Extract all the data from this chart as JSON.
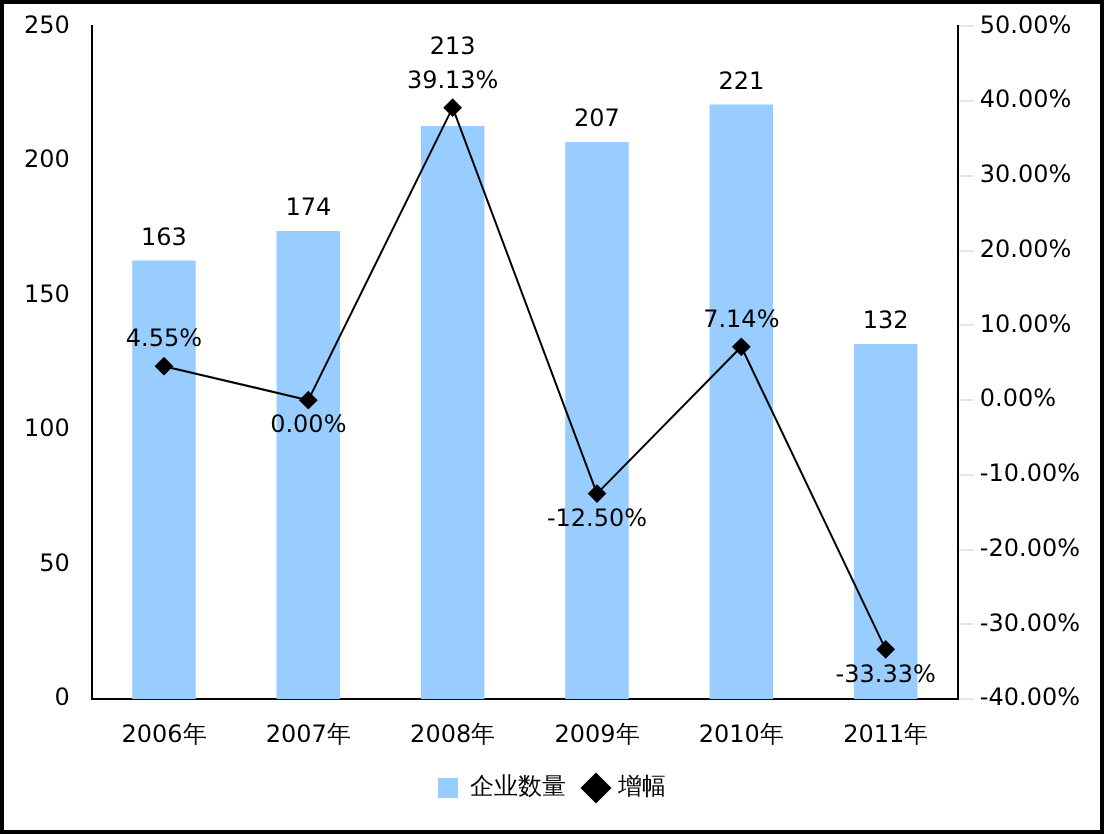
{
  "chart_data": {
    "type": "bar",
    "categories": [
      "2006年",
      "2007年",
      "2008年",
      "2009年",
      "2010年",
      "2011年"
    ],
    "series": [
      {
        "name": "企业数量",
        "color": "#99ccff",
        "values": [
          163,
          174,
          213,
          207,
          221,
          132
        ],
        "value_labels": [
          "163",
          "174",
          "213",
          "207",
          "221",
          "132"
        ]
      },
      {
        "name": "增幅",
        "type": "line",
        "axis": "y2",
        "color": "#000000",
        "marker": "diamond",
        "values": [
          4.55,
          0.0,
          39.13,
          -12.5,
          7.14,
          -33.33
        ],
        "value_labels": [
          "4.55%",
          "0.00%",
          "39.13%",
          "-12.50%",
          "7.14%",
          "-33.33%"
        ]
      }
    ],
    "ylim": [
      0,
      250
    ],
    "yticks": [
      0,
      50,
      100,
      150,
      200,
      250
    ],
    "y2lim": [
      -40,
      50
    ],
    "y2ticks": [
      {
        "value": -40,
        "label": "-40.00%"
      },
      {
        "value": -30,
        "label": "-30.00%"
      },
      {
        "value": -20,
        "label": "-20.00%"
      },
      {
        "value": -10,
        "label": "-10.00%"
      },
      {
        "value": 0,
        "label": "0.00%"
      },
      {
        "value": 10,
        "label": "10.00%"
      },
      {
        "value": 20,
        "label": "20.00%"
      },
      {
        "value": 30,
        "label": "30.00%"
      },
      {
        "value": 40,
        "label": "40.00%"
      },
      {
        "value": 50,
        "label": "50.00%"
      }
    ],
    "grid": false,
    "legend": "bottom"
  }
}
